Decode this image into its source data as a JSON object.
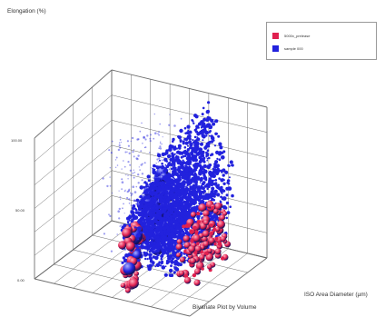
{
  "chart_data": {
    "type": "scatter",
    "title": "Bivariate Plot by Volume",
    "xlabel": "ISO Area Diameter (µm)",
    "ylabel": "Elongation (%)",
    "z_tick_labels": [
      "0.00",
      "50.00",
      "100.00"
    ],
    "ylim": [
      0,
      100
    ],
    "series": [
      {
        "name": "5000x_prelease",
        "color": "#e0204f",
        "marker": "sphere",
        "clusters": [
          {
            "region": "lower-left column",
            "elongation_range": [
              0,
              48
            ],
            "relative_diameter": "small",
            "bubble_size": "medium-large"
          },
          {
            "region": "right cluster",
            "elongation_range": [
              15,
              55
            ],
            "relative_diameter": "large",
            "bubble_size": "small-medium"
          }
        ]
      },
      {
        "name": "sample 000",
        "color": "#2222dd",
        "marker": "sphere",
        "clusters": [
          {
            "region": "left column",
            "elongation_range": [
              5,
              60
            ],
            "relative_diameter": "small",
            "bubble_size": "large"
          },
          {
            "region": "right dense cloud",
            "elongation_range": [
              20,
              110
            ],
            "relative_diameter": "large",
            "bubble_size": "small"
          }
        ]
      }
    ],
    "grid": true,
    "legend_position": "top-right"
  }
}
